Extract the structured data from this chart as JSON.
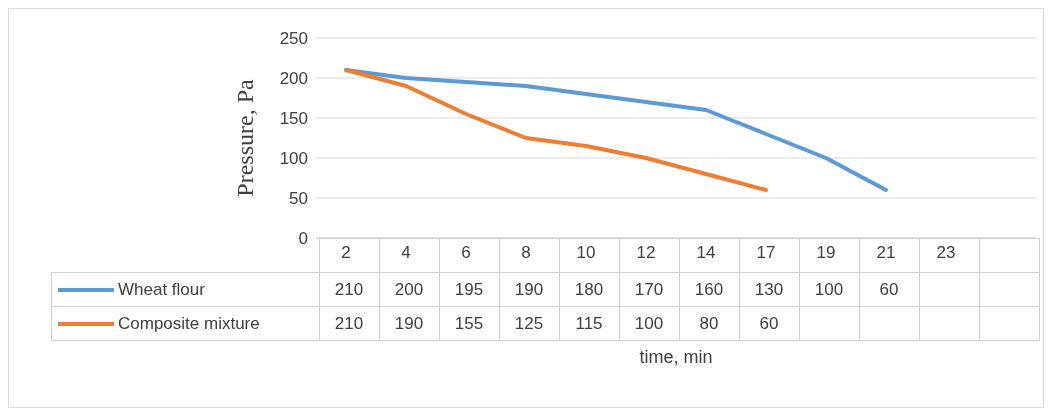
{
  "chart_data": {
    "type": "line",
    "xlabel": "time, min",
    "ylabel": "Pressure, Pa",
    "categories": [
      "2",
      "4",
      "6",
      "8",
      "10",
      "12",
      "14",
      "17",
      "19",
      "21",
      "23",
      null
    ],
    "series": [
      {
        "name": "Wheat flour",
        "color": "#5b9bd5",
        "values": [
          210,
          200,
          195,
          190,
          180,
          170,
          160,
          130,
          100,
          60,
          null,
          null
        ]
      },
      {
        "name": "Composite mixture",
        "color": "#ed7d31",
        "values": [
          210,
          190,
          155,
          125,
          115,
          100,
          80,
          60,
          null,
          null,
          null,
          null
        ]
      }
    ],
    "ylim": [
      0,
      250
    ],
    "yticks": [
      0,
      50,
      100,
      150,
      200,
      250
    ],
    "grid": "y",
    "legend": "bottom left",
    "data_labels": true,
    "marker": "none",
    "line_style": "solid"
  }
}
